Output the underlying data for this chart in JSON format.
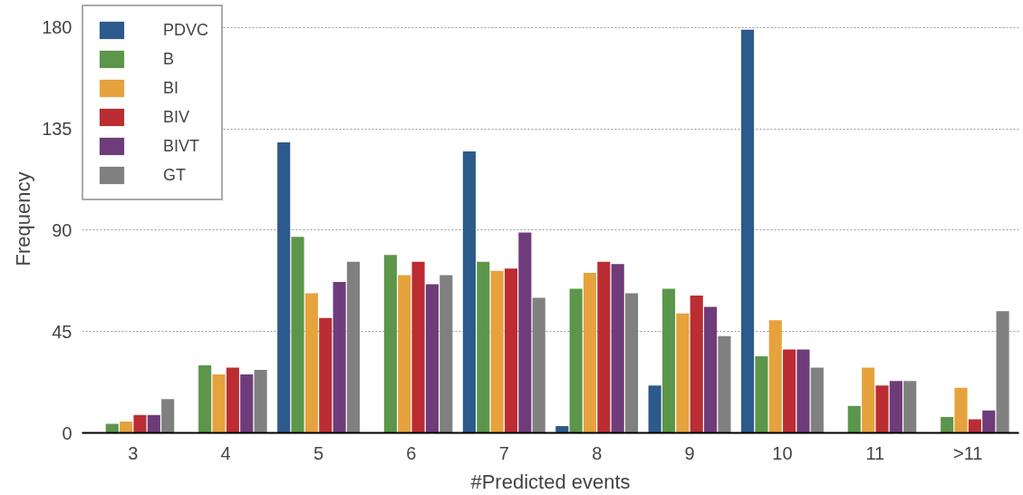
{
  "chart_data": {
    "type": "bar",
    "xlabel": "#Predicted events",
    "ylabel": "Frequency",
    "categories": [
      "3",
      "4",
      "5",
      "6",
      "7",
      "8",
      "9",
      "10",
      "11",
      ">11"
    ],
    "ylim": [
      0,
      190
    ],
    "yticks": [
      0,
      45,
      90,
      135,
      180
    ],
    "grid": "y",
    "legend": "top left",
    "series": [
      {
        "name": "PDVC",
        "color": "#2d5a8c",
        "values": [
          0,
          0,
          129,
          0,
          125,
          3,
          21,
          179,
          0,
          0
        ]
      },
      {
        "name": "B",
        "color": "#5c964a",
        "values": [
          4,
          30,
          87,
          79,
          76,
          64,
          64,
          34,
          12,
          7
        ]
      },
      {
        "name": "BI",
        "color": "#e6a23c",
        "values": [
          5,
          26,
          62,
          70,
          72,
          71,
          53,
          50,
          29,
          20
        ]
      },
      {
        "name": "BIV",
        "color": "#bb2d32",
        "values": [
          8,
          29,
          51,
          76,
          73,
          76,
          61,
          37,
          21,
          6
        ]
      },
      {
        "name": "BIVT",
        "color": "#6e3c7b",
        "values": [
          8,
          26,
          67,
          66,
          89,
          75,
          56,
          37,
          23,
          10
        ]
      },
      {
        "name": "GT",
        "color": "#808080",
        "values": [
          15,
          28,
          76,
          70,
          60,
          62,
          43,
          29,
          23,
          54
        ]
      }
    ]
  }
}
